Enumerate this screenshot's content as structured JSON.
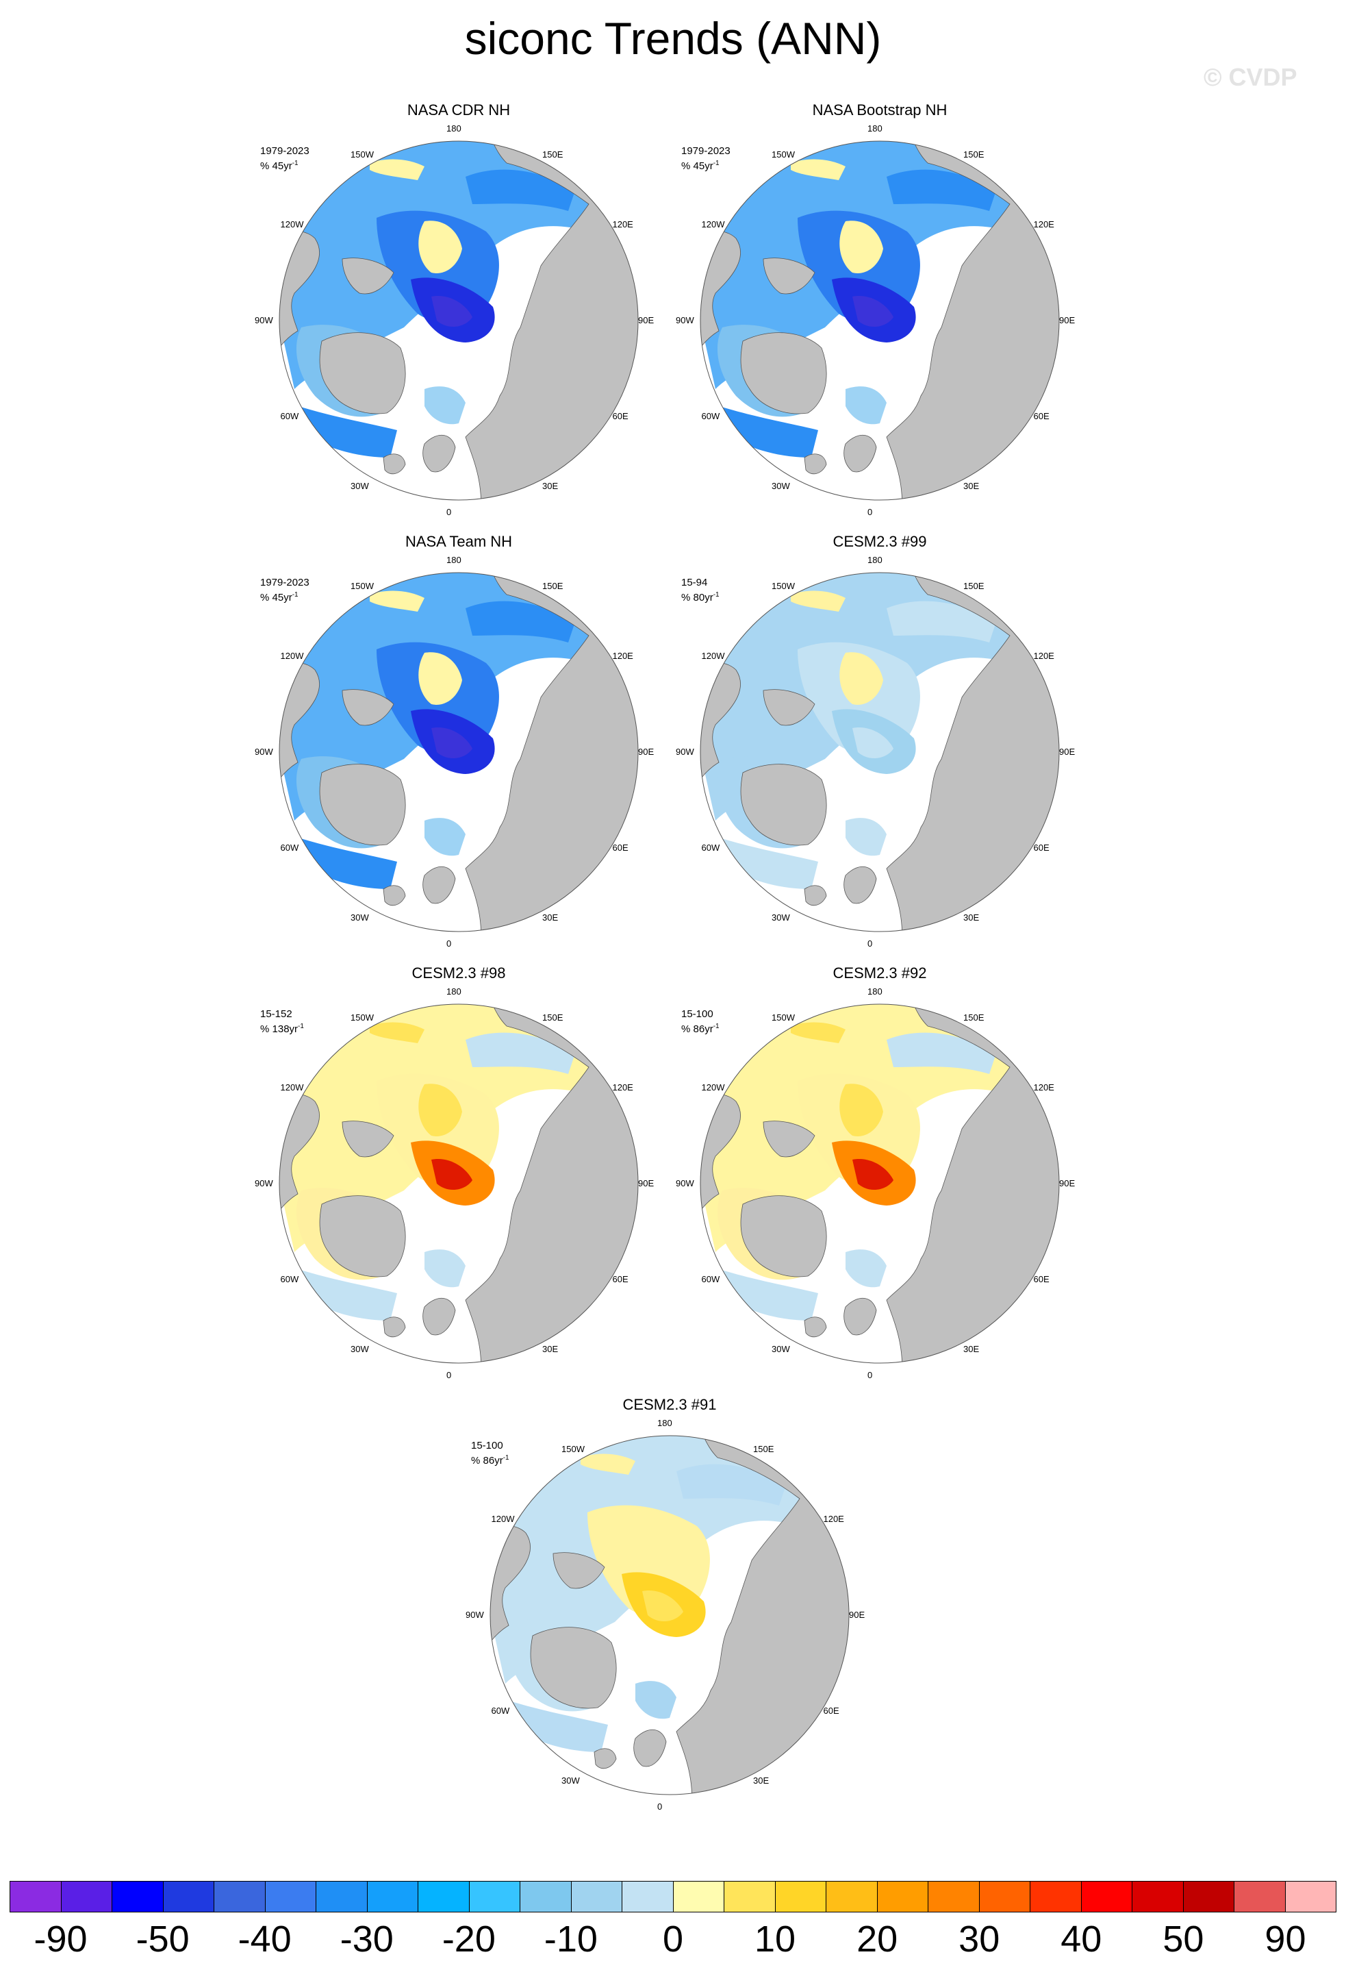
{
  "title": "siconc Trends (ANN)",
  "watermark": "© CVDP",
  "longitude_labels": {
    "top": "180",
    "bottom": "0",
    "upper_left": "150W",
    "upper_right": "150E",
    "left_upper": "120W",
    "right_upper": "120E",
    "left": "90W",
    "right": "90E",
    "left_lower": "60W",
    "right_lower": "60E",
    "lower_left": "30W",
    "lower_right": "30E"
  },
  "panels": [
    {
      "title": "NASA CDR NH",
      "period": "1979-2023",
      "trend_unit": "% 45yr",
      "unit_exp": "-1",
      "pattern": "obs"
    },
    {
      "title": "NASA Bootstrap NH",
      "period": "1979-2023",
      "trend_unit": "% 45yr",
      "unit_exp": "-1",
      "pattern": "obs"
    },
    {
      "title": "NASA Team NH",
      "period": "1979-2023",
      "trend_unit": "% 45yr",
      "unit_exp": "-1",
      "pattern": "obs"
    },
    {
      "title": "CESM2.3 #99",
      "period": "15-94",
      "trend_unit": "% 80yr",
      "unit_exp": "-1",
      "pattern": "weak"
    },
    {
      "title": "CESM2.3 #98",
      "period": "15-152",
      "trend_unit": "% 138yr",
      "unit_exp": "-1",
      "pattern": "warm"
    },
    {
      "title": "CESM2.3 #92",
      "period": "15-100",
      "trend_unit": "% 86yr",
      "unit_exp": "-1",
      "pattern": "warm"
    },
    {
      "title": "CESM2.3 #91",
      "period": "15-100",
      "trend_unit": "% 86yr",
      "unit_exp": "-1",
      "pattern": "mixed"
    }
  ],
  "colorbar": {
    "colors": [
      "#8b2be2",
      "#5a1fe6",
      "#0000ff",
      "#1f3ae0",
      "#3a66dd",
      "#3b7cf0",
      "#1f8ff5",
      "#149ffb",
      "#05b3ff",
      "#36c4ff",
      "#7ec8ee",
      "#a0d3ef",
      "#c3e2f3",
      "#fffcb0",
      "#ffe45a",
      "#ffd527",
      "#ffbe16",
      "#ff9d00",
      "#ff8300",
      "#ff6300",
      "#ff3300",
      "#ff0000",
      "#d90000",
      "#c00000",
      "#e65656",
      "#ffb6b6"
    ],
    "labels": [
      "-90",
      "-50",
      "-40",
      "-30",
      "-20",
      "-10",
      "0",
      "10",
      "20",
      "30",
      "40",
      "50",
      "90"
    ]
  }
}
